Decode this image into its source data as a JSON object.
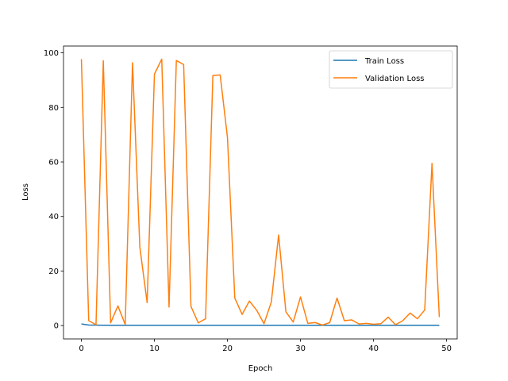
{
  "chart_data": {
    "type": "line",
    "title": "",
    "xlabel": "Epoch",
    "ylabel": "Loss",
    "xlim": [
      -2.45,
      51.45
    ],
    "ylim": [
      -4.9,
      102.5
    ],
    "xticks": [
      0,
      10,
      20,
      30,
      40,
      50
    ],
    "yticks": [
      0,
      20,
      40,
      60,
      80,
      100
    ],
    "grid": false,
    "legend_position": "top-right",
    "x": [
      0,
      1,
      2,
      3,
      4,
      5,
      6,
      7,
      8,
      9,
      10,
      11,
      12,
      13,
      14,
      15,
      16,
      17,
      18,
      19,
      20,
      21,
      22,
      23,
      24,
      25,
      26,
      27,
      28,
      29,
      30,
      31,
      32,
      33,
      34,
      35,
      36,
      37,
      38,
      39,
      40,
      41,
      42,
      43,
      44,
      45,
      46,
      47,
      48,
      49
    ],
    "series": [
      {
        "name": "Train Loss",
        "color": "#1f77b4",
        "values": [
          0.6,
          0.2,
          0.15,
          0.12,
          0.1,
          0.1,
          0.1,
          0.1,
          0.1,
          0.1,
          0.1,
          0.1,
          0.1,
          0.1,
          0.1,
          0.1,
          0.1,
          0.1,
          0.1,
          0.1,
          0.1,
          0.1,
          0.1,
          0.1,
          0.1,
          0.1,
          0.1,
          0.1,
          0.1,
          0.1,
          0.1,
          0.1,
          0.1,
          0.1,
          0.1,
          0.1,
          0.1,
          0.1,
          0.1,
          0.1,
          0.1,
          0.1,
          0.1,
          0.1,
          0.1,
          0.1,
          0.1,
          0.1,
          0.1,
          0.1
        ]
      },
      {
        "name": "Validation Loss",
        "color": "#ff7f0e",
        "values": [
          97.7,
          1.8,
          0.3,
          97.1,
          1.0,
          7.2,
          0.4,
          96.4,
          28.8,
          8.4,
          92.2,
          97.7,
          6.8,
          97.2,
          95.7,
          7.0,
          1.0,
          2.5,
          91.7,
          91.9,
          68.9,
          10.1,
          4.1,
          9.0,
          5.6,
          0.7,
          8.6,
          33.2,
          5.0,
          1.3,
          10.5,
          0.8,
          1.1,
          0.2,
          1.1,
          10.1,
          1.8,
          2.1,
          0.6,
          0.8,
          0.5,
          0.7,
          3.1,
          0.3,
          1.8,
          4.6,
          2.5,
          5.7,
          59.5,
          3.1
        ]
      }
    ]
  }
}
